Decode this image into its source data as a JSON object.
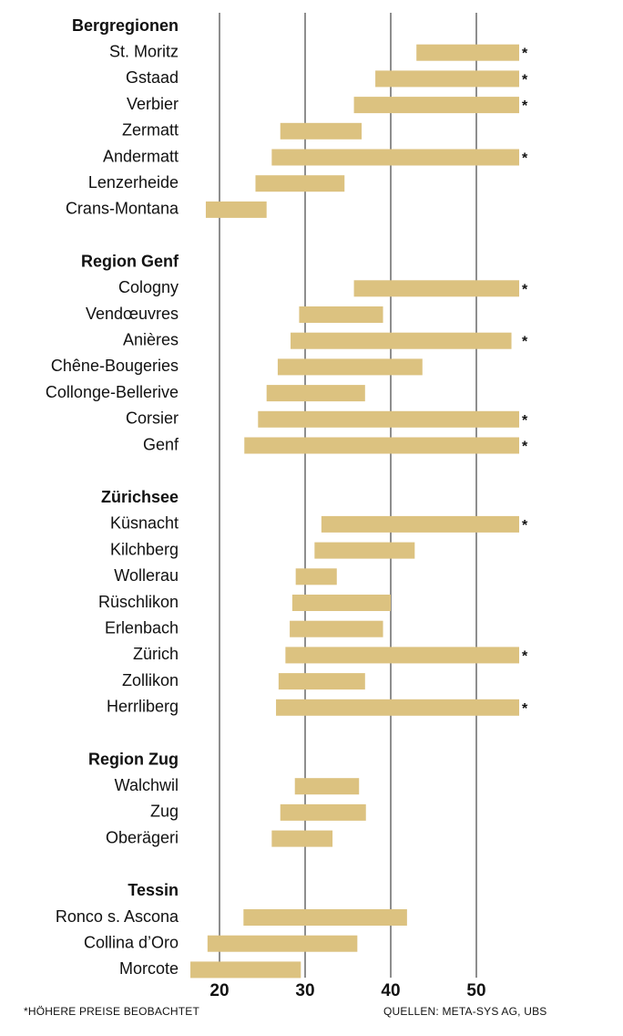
{
  "chart_data": {
    "type": "range-bar",
    "title": "",
    "xlabel": "",
    "ylabel": "",
    "xlim": [
      16,
      56
    ],
    "x_ticks": [
      "20",
      "30",
      "40",
      "50"
    ],
    "x_tick_values": [
      20,
      30,
      40,
      50
    ],
    "grid": true,
    "bar_color": "#dcc280",
    "marker": "*",
    "groups": [
      {
        "name": "Bergregionen",
        "items": [
          {
            "label": "St. Moritz",
            "low": 43,
            "high": 55,
            "note": "*"
          },
          {
            "label": "Gstaad",
            "low": 38.2,
            "high": 55,
            "note": "*"
          },
          {
            "label": "Verbier",
            "low": 35.7,
            "high": 55,
            "note": "*"
          },
          {
            "label": "Zermatt",
            "low": 27.1,
            "high": 36.6
          },
          {
            "label": "Andermatt",
            "low": 26.1,
            "high": 55,
            "note": "*"
          },
          {
            "label": "Lenzerheide",
            "low": 24.2,
            "high": 34.6
          },
          {
            "label": "Crans-Montana",
            "low": 18.4,
            "high": 25.5
          }
        ]
      },
      {
        "name": "Region Genf",
        "items": [
          {
            "label": "Cologny",
            "low": 35.7,
            "high": 55,
            "note": "*"
          },
          {
            "label": "Vendœuvres",
            "low": 29.3,
            "high": 39.1
          },
          {
            "label": "Anières",
            "low": 28.3,
            "high": 54.1,
            "note": "*"
          },
          {
            "label": "Chêne-Bougeries",
            "low": 26.8,
            "high": 43.7
          },
          {
            "label": "Collonge-Bellerive",
            "low": 25.5,
            "high": 37
          },
          {
            "label": "Corsier",
            "low": 24.5,
            "high": 55,
            "note": "*"
          },
          {
            "label": "Genf",
            "low": 22.9,
            "high": 55,
            "note": "*"
          }
        ]
      },
      {
        "name": "Zürichsee",
        "items": [
          {
            "label": "Küsnacht",
            "low": 31.9,
            "high": 55,
            "note": "*"
          },
          {
            "label": "Kilchberg",
            "low": 31.1,
            "high": 42.8
          },
          {
            "label": "Wollerau",
            "low": 28.9,
            "high": 33.7
          },
          {
            "label": "Rüschlikon",
            "low": 28.5,
            "high": 40
          },
          {
            "label": "Erlenbach",
            "low": 28.2,
            "high": 39.1
          },
          {
            "label": "Zürich",
            "low": 27.7,
            "high": 55,
            "note": "*"
          },
          {
            "label": "Zollikon",
            "low": 26.9,
            "high": 37
          },
          {
            "label": "Herrliberg",
            "low": 26.6,
            "high": 55,
            "note": "*"
          }
        ]
      },
      {
        "name": "Region Zug",
        "items": [
          {
            "label": "Walchwil",
            "low": 28.8,
            "high": 36.3
          },
          {
            "label": "Zug",
            "low": 27.1,
            "high": 37.1
          },
          {
            "label": "Oberägeri",
            "low": 26.1,
            "high": 33.2
          }
        ]
      },
      {
        "name": "Tessin",
        "items": [
          {
            "label": "Ronco s. Ascona",
            "low": 22.8,
            "high": 41.9
          },
          {
            "label": "Collina d’Oro",
            "low": 18.6,
            "high": 36.1
          },
          {
            "label": "Morcote",
            "low": 16.6,
            "high": 29.5
          }
        ]
      }
    ]
  },
  "footnote": "*HÖHERE PREISE BEOBACHTET",
  "source": "QUELLEN: META-SYS AG, UBS"
}
